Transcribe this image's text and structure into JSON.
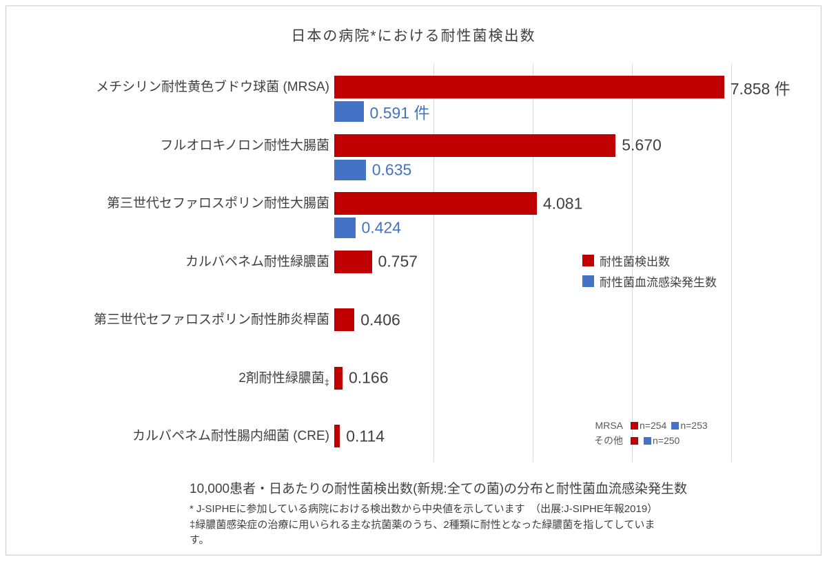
{
  "title": "日本の病院*における耐性菌検出数",
  "colors": {
    "red": "#c00000",
    "blue": "#4472c4",
    "grid": "#d9d9d9",
    "text_dark": "#404040",
    "text_note": "#595959"
  },
  "chart_data": {
    "type": "bar",
    "orientation": "horizontal",
    "title": "日本の病院*における耐性菌検出数",
    "xlim": [
      0,
      8
    ],
    "gridline_values": [
      2,
      4,
      6,
      8
    ],
    "grid": true,
    "legend_position": "center-right",
    "series_names": [
      "耐性菌検出数",
      "耐性菌血流感染発生数"
    ],
    "legend": [
      {
        "label": "耐性菌検出数",
        "color": "#c00000"
      },
      {
        "label": "耐性菌血流感染発生数",
        "color": "#4472c4"
      }
    ],
    "groups": [
      {
        "label": "メチシリン耐性黄色ブドウ球菌 (MRSA)",
        "bars": [
          {
            "series": "耐性菌検出数",
            "value": 7.858,
            "display": "7.858 件",
            "color": "#c00000",
            "label_color": "#404040"
          },
          {
            "series": "耐性菌血流感染発生数",
            "value": 0.591,
            "display": "0.591 件",
            "color": "#4472c4",
            "label_color": "#4472c4"
          }
        ]
      },
      {
        "label": "フルオロキノロン耐性大腸菌",
        "bars": [
          {
            "series": "耐性菌検出数",
            "value": 5.67,
            "display": "5.670",
            "color": "#c00000",
            "label_color": "#404040"
          },
          {
            "series": "耐性菌血流感染発生数",
            "value": 0.635,
            "display": "0.635",
            "color": "#4472c4",
            "label_color": "#4472c4"
          }
        ]
      },
      {
        "label": "第三世代セファロスポリン耐性大腸菌",
        "bars": [
          {
            "series": "耐性菌検出数",
            "value": 4.081,
            "display": "4.081",
            "color": "#c00000",
            "label_color": "#404040"
          },
          {
            "series": "耐性菌血流感染発生数",
            "value": 0.424,
            "display": "0.424",
            "color": "#4472c4",
            "label_color": "#4472c4"
          }
        ]
      },
      {
        "label": "カルバペネム耐性緑膿菌",
        "bars": [
          {
            "series": "耐性菌検出数",
            "value": 0.757,
            "display": "0.757",
            "color": "#c00000",
            "label_color": "#404040"
          }
        ]
      },
      {
        "label": "第三世代セファロスポリン耐性肺炎桿菌",
        "bars": [
          {
            "series": "耐性菌検出数",
            "value": 0.406,
            "display": "0.406",
            "color": "#c00000",
            "label_color": "#404040"
          }
        ]
      },
      {
        "label": "2剤耐性緑膿菌",
        "label_suffix": "‡",
        "bars": [
          {
            "series": "耐性菌検出数",
            "value": 0.166,
            "display": "0.166",
            "color": "#c00000",
            "label_color": "#404040"
          }
        ]
      },
      {
        "label": "カルバペネム耐性腸内細菌 (CRE)",
        "bars": [
          {
            "series": "耐性菌検出数",
            "value": 0.114,
            "display": "0.114",
            "color": "#c00000",
            "label_color": "#404040"
          }
        ]
      }
    ]
  },
  "sample_sizes": {
    "rows": [
      {
        "label": "MRSA",
        "items": [
          {
            "color": "#c00000",
            "text": "n=254"
          },
          {
            "color": "#4472c4",
            "text": "n=253"
          }
        ]
      },
      {
        "label": "その他",
        "items": [
          {
            "color": "#c00000",
            "text": ""
          },
          {
            "color": "#4472c4",
            "text": "n=250"
          }
        ]
      }
    ]
  },
  "footer": {
    "caption": "10,000患者・日あたりの耐性菌検出数(新規:全ての菌)の分布と耐性菌血流感染発生数",
    "note1": "* J-SIPHEに参加している病院における検出数から中央値を示しています　（出展:J-SIPHE年報2019）",
    "note2_line1": "‡緑膿菌感染症の治療に用いられる主な抗菌薬のうち、2種類に耐性となった緑膿菌を指してしていま",
    "note2_line2": "す。"
  }
}
